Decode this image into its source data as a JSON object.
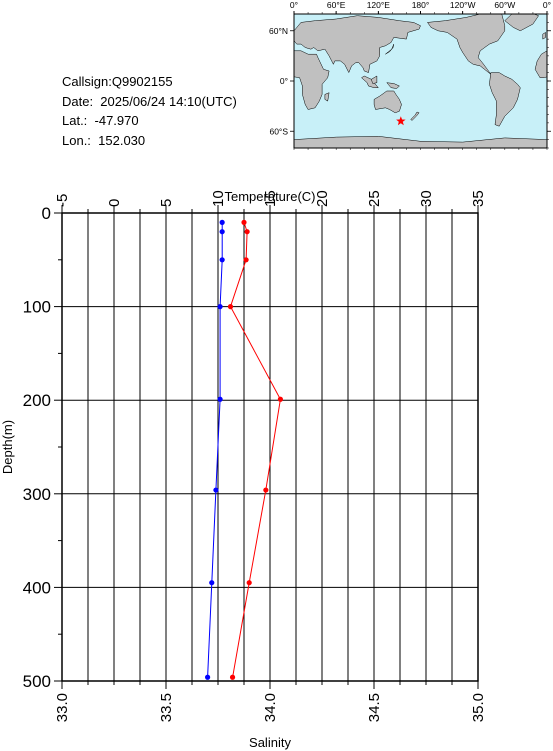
{
  "info": {
    "callsign": "Callsign:Q9902155",
    "date": "Date:  2025/06/24 14:10(UTC)",
    "lat": "Lat.:  -47.970",
    "lon": "Lon.:  152.030"
  },
  "map": {
    "lon_labels": [
      "0°",
      "60°E",
      "120°E",
      "180°",
      "120°W",
      "60°W",
      "0°"
    ],
    "lat_labels": [
      "60°N",
      "0°",
      "60°S"
    ],
    "marker": {
      "lat": -47.97,
      "lon": 152.03,
      "symbol": "star",
      "color": "#ff0000"
    },
    "colors": {
      "ocean": "#c8f0f8",
      "land": "#c0c0c0"
    }
  },
  "chart_data": {
    "type": "line",
    "title": "",
    "ylabel": "Depth(m)",
    "y": [
      0,
      100,
      200,
      300,
      400,
      500
    ],
    "ylim": [
      0,
      500
    ],
    "y_inverted": true,
    "top_axis": {
      "label": "Temperature(C)",
      "range": [
        -5,
        35
      ],
      "ticks": [
        "-5",
        "0",
        "5",
        "10",
        "15",
        "20",
        "25",
        "30",
        "35"
      ]
    },
    "bottom_axis": {
      "label": "Salinity",
      "range": [
        33.0,
        35.0
      ],
      "ticks": [
        "33.0",
        "33.5",
        "34.0",
        "34.5",
        "35.0"
      ]
    },
    "y_ticks": [
      "0",
      "100",
      "200",
      "300",
      "400",
      "500"
    ],
    "grid": true,
    "series": [
      {
        "axis": "top",
        "color": "#ff0000",
        "points": [
          [
            12.5,
            10
          ],
          [
            12.8,
            20
          ],
          [
            12.7,
            50
          ],
          [
            11.2,
            100
          ],
          [
            16.0,
            199
          ],
          [
            14.6,
            296
          ],
          [
            13.0,
            395
          ],
          [
            11.4,
            496
          ]
        ]
      },
      {
        "axis": "bottom",
        "color": "#0000ff",
        "points": [
          [
            33.77,
            10
          ],
          [
            33.77,
            20
          ],
          [
            33.77,
            50
          ],
          [
            33.76,
            100
          ],
          [
            33.76,
            199
          ],
          [
            33.74,
            296
          ],
          [
            33.72,
            395
          ],
          [
            33.7,
            496
          ]
        ]
      }
    ]
  }
}
